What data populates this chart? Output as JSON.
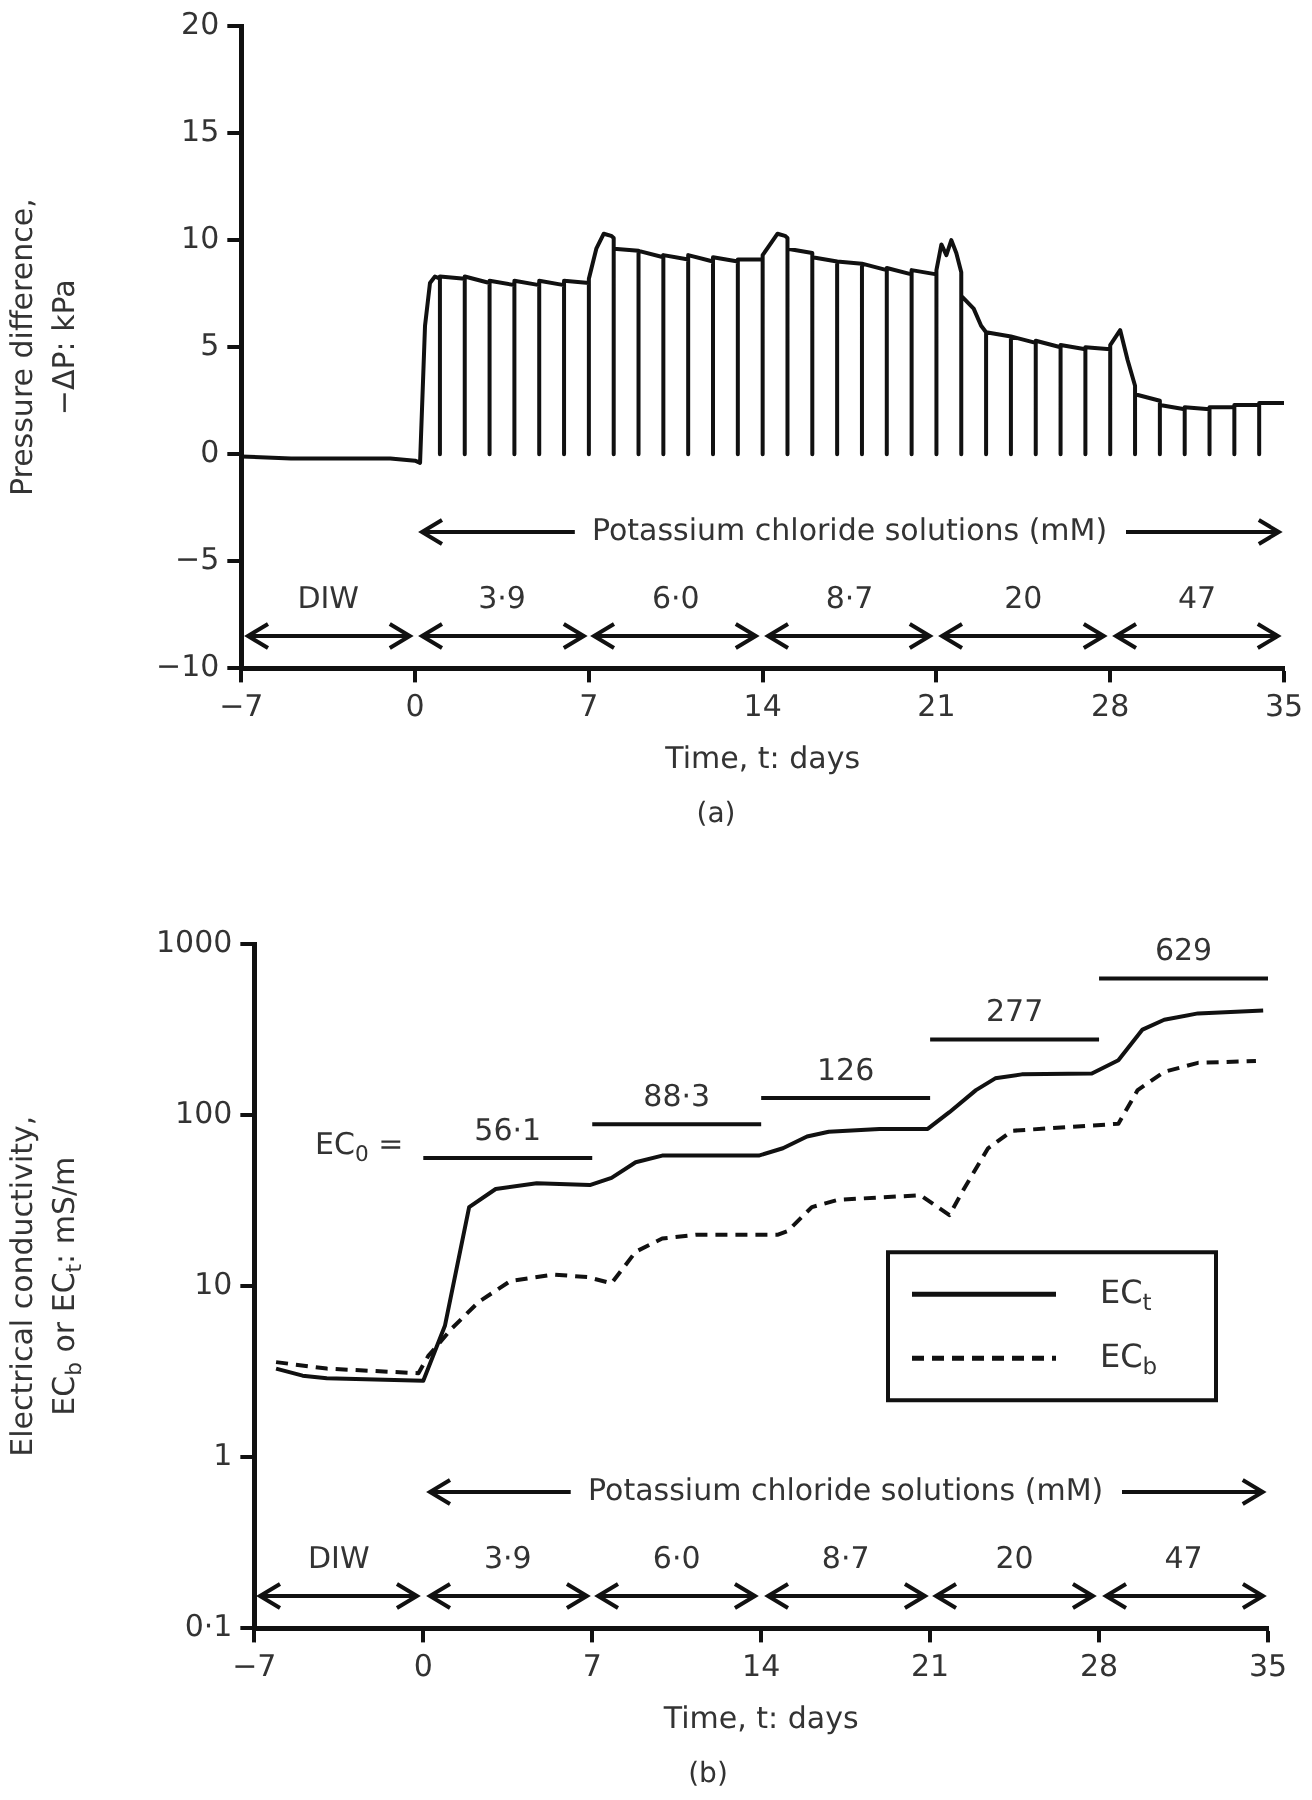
{
  "chart_data": [
    {
      "type": "line",
      "title": "(a)",
      "xlabel": "Time, t: days",
      "ylabel": "Pressure difference,\n−ΔP: kPa",
      "color": "#111111",
      "x": [
        -7,
        -5,
        -3,
        -1,
        0,
        0.2,
        0.4,
        0.6,
        0.8,
        1,
        1,
        1,
        2,
        2,
        2,
        3,
        3,
        3,
        4,
        4,
        4,
        5,
        5,
        5,
        6,
        6,
        6,
        7,
        7,
        7,
        7.3,
        7.6,
        7.9,
        8,
        8,
        8,
        9,
        9,
        9,
        10,
        10,
        10,
        11,
        11,
        11,
        12,
        12,
        12,
        13,
        13,
        13,
        14,
        14,
        14,
        14.3,
        14.6,
        14.9,
        15,
        15,
        15,
        16,
        16,
        16,
        17,
        17,
        17,
        18,
        18,
        18,
        19,
        19,
        19,
        20,
        20,
        20,
        21,
        21,
        21,
        21.2,
        21.4,
        21.6,
        21.8,
        22,
        22,
        22,
        22.5,
        22.8,
        23,
        23,
        23,
        24,
        24,
        24,
        25,
        25,
        25,
        26,
        26,
        26,
        27,
        27,
        27,
        28,
        28,
        28,
        28.4,
        28.7,
        29,
        29,
        29,
        30,
        30,
        30,
        31,
        31,
        31,
        32,
        32,
        32,
        33,
        33,
        33,
        34,
        34,
        34,
        35
      ],
      "values": [
        -0.1,
        -0.2,
        -0.2,
        -0.2,
        -0.3,
        -0.4,
        6,
        8.0,
        8.3,
        8.2,
        0,
        8.3,
        8.2,
        0,
        8.3,
        8.0,
        0,
        8.1,
        7.9,
        0,
        8.1,
        7.9,
        0,
        8.1,
        7.9,
        0,
        8.1,
        8.0,
        0,
        8.2,
        9.6,
        10.3,
        10.2,
        10.1,
        0,
        9.6,
        9.5,
        0,
        9.5,
        9.2,
        0,
        9.3,
        9.1,
        0,
        9.3,
        9.0,
        0,
        9.2,
        9.0,
        0,
        9.1,
        9.1,
        0,
        9.3,
        9.8,
        10.3,
        10.2,
        10.1,
        0,
        9.6,
        9.4,
        0,
        9.2,
        9.0,
        0,
        9.0,
        8.9,
        0,
        8.9,
        8.6,
        0,
        8.7,
        8.4,
        0,
        8.6,
        8.4,
        0,
        8.6,
        9.8,
        9.3,
        10.0,
        9.4,
        8.5,
        0,
        7.4,
        6.8,
        6.0,
        5.7,
        0,
        5.7,
        5.5,
        0,
        5.5,
        5.2,
        0,
        5.3,
        5.0,
        0,
        5.1,
        4.9,
        0,
        5.0,
        4.9,
        0,
        5.1,
        5.8,
        4.4,
        3.2,
        0,
        2.8,
        2.5,
        0,
        2.3,
        2.1,
        0,
        2.2,
        2.1,
        0,
        2.2,
        2.2,
        0,
        2.3,
        2.3,
        0,
        2.4,
        2.4
      ],
      "xlim": [
        -7,
        35
      ],
      "xticks": [
        {
          "value": -7,
          "label": "−7"
        },
        0,
        7,
        14,
        21,
        28,
        35
      ],
      "ylim": [
        -10,
        20
      ],
      "yticks": [
        {
          "value": -10,
          "label": "−10"
        },
        {
          "value": -5,
          "label": "−5"
        },
        0,
        5,
        10,
        15,
        20
      ],
      "annotations": [
        "DIW",
        "3·9",
        "6·0",
        "8·7",
        "20",
        "47",
        "Potassium chloride solutions (mM)"
      ],
      "grid": false,
      "legend": false
    },
    {
      "type": "line",
      "title": "(b)",
      "xlabel": "Time, t: days",
      "ylabel": "Electrical conductivity,\nEC$_{b}$ or EC$_{t}$: mS/m",
      "log": "y",
      "series": [
        {
          "name": "EC$_{t}$",
          "color": "#111111",
          "line_style": "solid",
          "x": [
            -6.1,
            -5,
            -4,
            0,
            0.9,
            1.9,
            3,
            4.7,
            6.9,
            7.8,
            8.8,
            9.9,
            13.9,
            14.9,
            15.9,
            16.8,
            18.9,
            20.9,
            21.8,
            22.9,
            23.7,
            24.8,
            27.7,
            28.8,
            29.8,
            30.7,
            32.1,
            34.8
          ],
          "values": [
            3.3,
            3.0,
            2.9,
            2.8,
            5.9,
            29,
            37,
            40,
            39,
            43,
            53,
            58,
            58,
            64,
            75,
            80,
            83,
            83,
            104,
            140,
            164,
            173,
            175,
            209,
            316,
            361,
            393,
            408
          ]
        },
        {
          "name": "EC$_{b}$",
          "color": "#111111",
          "line_style": "dashed",
          "x": [
            -6.1,
            -4,
            -0.2,
            0.2,
            1.2,
            2.3,
            3.6,
            5.4,
            6.8,
            7.8,
            8.8,
            9.9,
            11.3,
            14.7,
            15.1,
            16.1,
            17.2,
            20.6,
            21.8,
            22.4,
            23.4,
            24.4,
            28.8,
            29.6,
            30.7,
            32.1,
            34.5
          ],
          "values": [
            3.6,
            3.3,
            3.1,
            3.9,
            5.7,
            8.1,
            10.7,
            11.7,
            11.3,
            10.4,
            15.9,
            19,
            20,
            20,
            21,
            29,
            32,
            34,
            26,
            37,
            64,
            81,
            89,
            140,
            179,
            202,
            207
          ]
        },
        {
          "color": "#111111",
          "line_style": "solid",
          "x": [
            0,
            7
          ],
          "values": [
            56.1,
            56.1
          ],
          "value_labels": [
            "56·1",
            null
          ]
        },
        {
          "color": "#111111",
          "line_style": "solid",
          "x": [
            7,
            14
          ],
          "values": [
            88.3,
            88.3
          ],
          "value_labels": [
            "88·3",
            null
          ]
        },
        {
          "color": "#111111",
          "line_style": "solid",
          "x": [
            14,
            21
          ],
          "values": [
            126,
            126
          ],
          "value_labels": [
            "126",
            null
          ]
        },
        {
          "color": "#111111",
          "line_style": "solid",
          "x": [
            21,
            28
          ],
          "values": [
            277,
            277
          ],
          "value_labels": [
            "277",
            null
          ]
        },
        {
          "color": "#111111",
          "line_style": "solid",
          "x": [
            28,
            35
          ],
          "values": [
            629,
            629
          ],
          "value_labels": [
            "629",
            null
          ]
        }
      ],
      "annotations": [
        "DIW",
        "3·9",
        "6·0",
        "8·7",
        "20",
        "47",
        "Potassium chloride solutions (mM)",
        "EC$_{0}$ ="
      ],
      "xlim": [
        -7,
        35
      ],
      "xticks": [
        {
          "value": -7,
          "label": "−7"
        },
        0,
        7,
        14,
        21,
        28,
        35
      ],
      "ylim": [
        0.1,
        1000
      ],
      "yticks": [
        {
          "value": 0.1,
          "label": "0·1"
        },
        1,
        10,
        100,
        1000
      ],
      "grid": false,
      "legend": "right"
    }
  ]
}
